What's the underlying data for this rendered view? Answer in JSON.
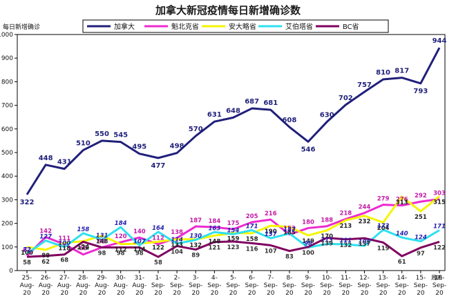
{
  "chart_data": {
    "type": "line",
    "title": "加拿大新冠疫情每日新增确诊数",
    "ylabel": "每日新增确诊",
    "ylim": [
      0,
      1000
    ],
    "yticks": [
      0,
      100,
      200,
      300,
      400,
      500,
      600,
      700,
      800,
      900,
      1000
    ],
    "grid": false,
    "legend_position": "top",
    "x_note": "周四",
    "categories": [
      [
        "25-",
        "Aug-",
        "20"
      ],
      [
        "26-",
        "Aug-",
        "20"
      ],
      [
        "27-",
        "Aug-",
        "20"
      ],
      [
        "28-",
        "Aug-",
        "20"
      ],
      [
        "29-",
        "Aug-",
        "20"
      ],
      [
        "30-",
        "Aug-",
        "20"
      ],
      [
        "31-",
        "Aug-",
        "20"
      ],
      [
        "1-",
        "Sep-",
        "20"
      ],
      [
        "2-",
        "Sep-",
        "20"
      ],
      [
        "3-",
        "Sep-",
        "20"
      ],
      [
        "4-",
        "Sep-",
        "20"
      ],
      [
        "5-",
        "Sep-",
        "20"
      ],
      [
        "6-",
        "Sep-",
        "20"
      ],
      [
        "7-",
        "Sep-",
        "20"
      ],
      [
        "8-",
        "Sep-",
        "20"
      ],
      [
        "9-",
        "Sep-",
        "20"
      ],
      [
        "10-",
        "Sep-",
        "20"
      ],
      [
        "11-",
        "Sep-",
        "20"
      ],
      [
        "12-",
        "Sep-",
        "20"
      ],
      [
        "13-",
        "Sep-",
        "20"
      ],
      [
        "14-",
        "Sep-",
        "20"
      ],
      [
        "15-",
        "Sep-",
        "20"
      ],
      [
        "16-",
        "Sep-",
        "20"
      ]
    ],
    "series": [
      {
        "name": "加拿大",
        "color": "#1f1f7a",
        "label_color": "#1f1f7a",
        "italic": false,
        "values": [
          322,
          448,
          431,
          510,
          550,
          545,
          495,
          477,
          498,
          570,
          631,
          648,
          687,
          681,
          608,
          546,
          630,
          702,
          757,
          810,
          817,
          793,
          944
        ]
      },
      {
        "name": "魁北克省",
        "color": "#ee2ad0",
        "label_color": "#c41aa8",
        "italic": false,
        "values": [
          62,
          142,
          111,
          68,
          98,
          120,
          140,
          112,
          138,
          187,
          184,
          175,
          205,
          216,
          153,
          180,
          188,
          218,
          244,
          279,
          276,
          292,
          303
        ]
      },
      {
        "name": "安大略省",
        "color": "#f5f500",
        "label_color": "#222222",
        "italic": false,
        "values": [
          100,
          88,
          118,
          124,
          148,
          112,
          114,
          122,
          133,
          132,
          148,
          159,
          158,
          190,
          185,
          149,
          170,
          213,
          232,
          204,
          313,
          251,
          315
        ]
      },
      {
        "name": "艾伯塔省",
        "color": "#2de0f0",
        "label_color": "#2323b0",
        "italic": true,
        "values": [
          72,
          127,
          100,
          158,
          131,
          184,
          107,
          164,
          114,
          130,
          163,
          154,
          171,
          137,
          157,
          98,
          113,
          111,
          105,
          173,
          140,
          124,
          171
        ]
      },
      {
        "name": "BC省",
        "color": "#800060",
        "label_color": "#333333",
        "italic": false,
        "values": [
          58,
          62,
          68,
          122,
          98,
          98,
          98,
          58,
          104,
          89,
          121,
          123,
          116,
          107,
          83,
          100,
          139,
          132,
          137,
          119,
          61,
          97,
          122
        ]
      }
    ]
  }
}
